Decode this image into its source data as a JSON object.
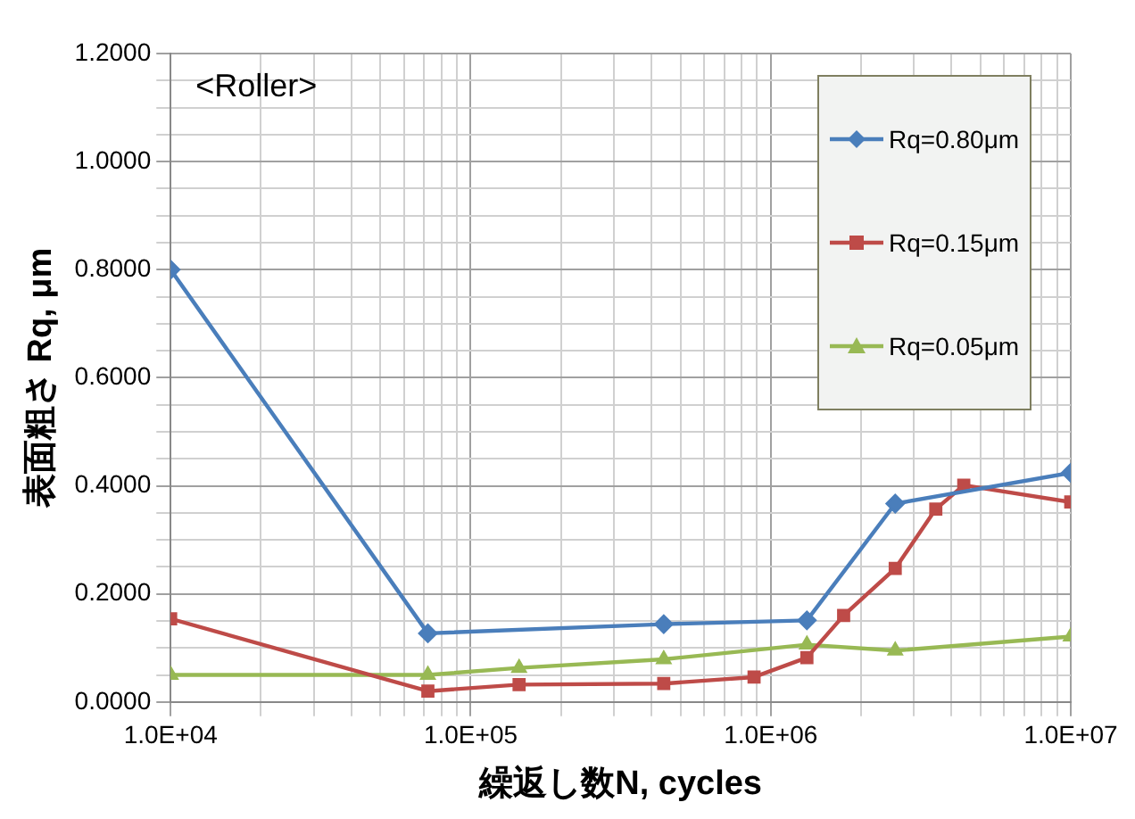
{
  "chart_data": {
    "type": "line",
    "xlabel": "繰返し数N, cycles",
    "ylabel": "表面粗さ Rq, μm",
    "annotations": [
      "<Roller>"
    ],
    "log": "x",
    "grid": true,
    "legend": "top right",
    "line_style": "solid",
    "xlim": [
      10000,
      10000000
    ],
    "xticks": [
      {
        "value": 10000,
        "label": "1.0E+04"
      },
      {
        "value": 20000,
        "label": null
      },
      {
        "value": 30000,
        "label": null
      },
      {
        "value": 40000,
        "label": null
      },
      {
        "value": 50000,
        "label": null
      },
      {
        "value": 60000,
        "label": null
      },
      {
        "value": 70000,
        "label": null
      },
      {
        "value": 80000,
        "label": null
      },
      {
        "value": 90000,
        "label": null
      },
      {
        "value": 100000,
        "label": "1.0E+05"
      },
      {
        "value": 200000,
        "label": null
      },
      {
        "value": 300000,
        "label": null
      },
      {
        "value": 400000,
        "label": null
      },
      {
        "value": 500000,
        "label": null
      },
      {
        "value": 600000,
        "label": null
      },
      {
        "value": 700000,
        "label": null
      },
      {
        "value": 800000,
        "label": null
      },
      {
        "value": 900000,
        "label": null
      },
      {
        "value": 1000000,
        "label": "1.0E+06"
      },
      {
        "value": 2000000,
        "label": null
      },
      {
        "value": 3000000,
        "label": null
      },
      {
        "value": 4000000,
        "label": null
      },
      {
        "value": 5000000,
        "label": null
      },
      {
        "value": 6000000,
        "label": null
      },
      {
        "value": 7000000,
        "label": null
      },
      {
        "value": 8000000,
        "label": null
      },
      {
        "value": 9000000,
        "label": null
      },
      {
        "value": 10000000,
        "label": "1.0E+07"
      }
    ],
    "ylim": [
      0,
      1.2
    ],
    "yticks": [
      {
        "value": 0,
        "label": "0.0000"
      },
      {
        "value": 0.05,
        "label": null
      },
      {
        "value": 0.1,
        "label": null
      },
      {
        "value": 0.15,
        "label": null
      },
      {
        "value": 0.2,
        "label": "0.2000"
      },
      {
        "value": 0.25,
        "label": null
      },
      {
        "value": 0.3,
        "label": null
      },
      {
        "value": 0.35,
        "label": null
      },
      {
        "value": 0.4,
        "label": "0.4000"
      },
      {
        "value": 0.45,
        "label": null
      },
      {
        "value": 0.5,
        "label": null
      },
      {
        "value": 0.55,
        "label": null
      },
      {
        "value": 0.6,
        "label": "0.6000"
      },
      {
        "value": 0.65,
        "label": null
      },
      {
        "value": 0.7,
        "label": null
      },
      {
        "value": 0.75,
        "label": null
      },
      {
        "value": 0.8,
        "label": "0.8000"
      },
      {
        "value": 0.85,
        "label": null
      },
      {
        "value": 0.9,
        "label": null
      },
      {
        "value": 0.95,
        "label": null
      },
      {
        "value": 1.0,
        "label": "1.0000"
      },
      {
        "value": 1.05,
        "label": null
      },
      {
        "value": 1.1,
        "label": null
      },
      {
        "value": 1.15,
        "label": null
      },
      {
        "value": 1.2,
        "label": "1.2000"
      }
    ],
    "series": [
      {
        "name": "Rq=0.80μm",
        "color": "#4a7ebb",
        "marker": "diamond",
        "x": [
          10000,
          72000,
          440000,
          1320000,
          2600000,
          10000000
        ],
        "values": [
          0.8,
          0.127,
          0.144,
          0.151,
          0.367,
          0.424
        ]
      },
      {
        "name": "Rq=0.15μm",
        "color": "#be4b48",
        "marker": "square",
        "x": [
          10000,
          72000,
          145000,
          440000,
          880000,
          1320000,
          1750000,
          2600000,
          3550000,
          4400000,
          10000000
        ],
        "values": [
          0.154,
          0.02,
          0.032,
          0.034,
          0.046,
          0.082,
          0.16,
          0.247,
          0.357,
          0.401,
          0.37
        ]
      },
      {
        "name": "Rq=0.05μm",
        "color": "#98b954",
        "marker": "triangle",
        "x": [
          10000,
          72000,
          145000,
          440000,
          1320000,
          2600000,
          10000000
        ],
        "values": [
          0.05,
          0.05,
          0.063,
          0.079,
          0.106,
          0.095,
          0.121
        ]
      }
    ]
  }
}
